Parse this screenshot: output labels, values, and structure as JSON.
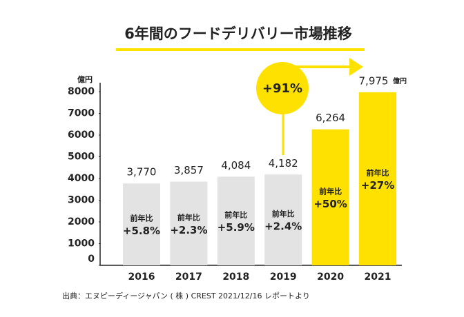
{
  "chart_data": {
    "type": "bar",
    "title": "6年間のフードデリバリー市場推移",
    "y_unit": "億円",
    "categories": [
      "2016",
      "2017",
      "2018",
      "2019",
      "2020",
      "2021"
    ],
    "values": [
      3770,
      3857,
      4084,
      4182,
      6264,
      7975
    ],
    "value_labels": [
      "3,770",
      "3,857",
      "4,084",
      "4,182",
      "6,264",
      "7,975"
    ],
    "colors": [
      "#e3e3e3",
      "#e3e3e3",
      "#e3e3e3",
      "#e3e3e3",
      "#ffe100",
      "#ffe100"
    ],
    "yoy_label": "前年比",
    "yoy_changes": [
      "+5.8%",
      "+2.3%",
      "+5.9%",
      "+2.4%",
      "+50%",
      "+27%"
    ],
    "callout": "+91%",
    "ylim": [
      0,
      8000
    ],
    "yticks": [
      0,
      1000,
      2000,
      3000,
      4000,
      5000,
      6000,
      7000,
      8000
    ],
    "grid": false,
    "source": "出典：エヌピーディージャパン ( 株 ) CREST 2021/12/16 レポートより"
  }
}
